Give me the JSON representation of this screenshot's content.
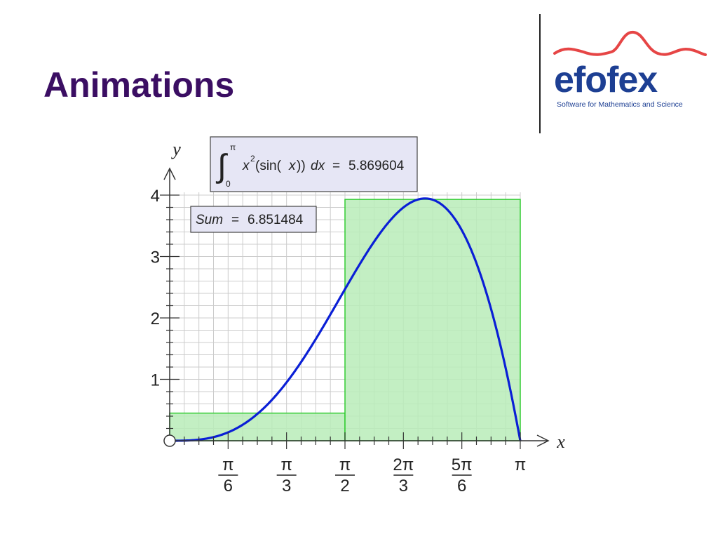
{
  "slide": {
    "title": "Animations"
  },
  "logo": {
    "word": "efofex",
    "tagline": "Software for Mathematics and Science",
    "icon": "red-wave-icon",
    "colors": {
      "word": "#1d3f93",
      "wave": "#e64545"
    }
  },
  "colors": {
    "title": "#3b0e63",
    "curve": "#0a1fd6",
    "rect_fill": "#b8ecb8",
    "rect_stroke": "#33cc33",
    "grid": "#cccccc",
    "box_fill": "#e6e6f5"
  },
  "integral_box": {
    "upper": "π",
    "lower": "0",
    "integrand_pre": "x",
    "exponent": "2",
    "integrand_post": "(sin(",
    "integrand_var": "x",
    "integrand_close": "))",
    "dx": "dx",
    "equals": "=",
    "value": "5.869604"
  },
  "sum_box": {
    "label": "Sum",
    "equals": "=",
    "value": "6.851484"
  },
  "chart_data": {
    "type": "line",
    "function": "x^2 sin(x)",
    "xlabel": "x",
    "ylabel": "y",
    "xlim": [
      0,
      3.14159
    ],
    "ylim": [
      0,
      4
    ],
    "grid": true,
    "x_ticks": [
      {
        "value": 0.5236,
        "num": "π",
        "den": "6"
      },
      {
        "value": 1.0472,
        "num": "π",
        "den": "3"
      },
      {
        "value": 1.5708,
        "num": "π",
        "den": "2"
      },
      {
        "value": 2.0944,
        "num": "2π",
        "den": "3"
      },
      {
        "value": 2.618,
        "num": "5π",
        "den": "6"
      },
      {
        "value": 3.14159,
        "num": "π",
        "den": ""
      }
    ],
    "y_ticks": [
      {
        "value": 1,
        "label": "1"
      },
      {
        "value": 2,
        "label": "2"
      },
      {
        "value": 3,
        "label": "3"
      },
      {
        "value": 4,
        "label": "4"
      }
    ],
    "rectangles": [
      {
        "x0": 0,
        "x1": 1.5708,
        "height": 0.45
      },
      {
        "x0": 1.5708,
        "x1": 3.14159,
        "height": 3.93
      }
    ]
  }
}
